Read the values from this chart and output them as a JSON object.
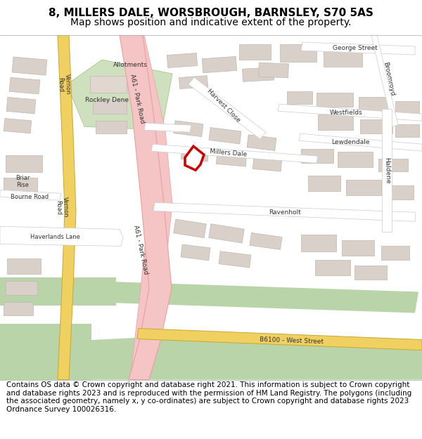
{
  "title_line1": "8, MILLERS DALE, WORSBROUGH, BARNSLEY, S70 5AS",
  "title_line2": "Map shows position and indicative extent of the property.",
  "footer_text": "Contains OS data © Crown copyright and database right 2021. This information is subject to Crown copyright and database rights 2023 and is reproduced with the permission of HM Land Registry. The polygons (including the associated geometry, namely x, y co-ordinates) are subject to Crown copyright and database rights 2023 Ordnance Survey 100026316.",
  "title_fontsize": 11,
  "subtitle_fontsize": 10,
  "footer_fontsize": 7.5,
  "bg_color": "#ffffff",
  "map_bg": "#f2efe9",
  "road_major_color": "#f5c4c4",
  "road_major_border": "#e8a0a0",
  "road_minor_color": "#ffffff",
  "building_color": "#d9d0c9",
  "building_outline": "#c0b8b0",
  "highlight_color": "#cc0000",
  "highlight_fill": "#ffffff",
  "green_area_color": "#b8d4a8",
  "yellow_road_color": "#e8d080",
  "figure_width": 6.0,
  "figure_height": 6.25,
  "dpi": 100
}
